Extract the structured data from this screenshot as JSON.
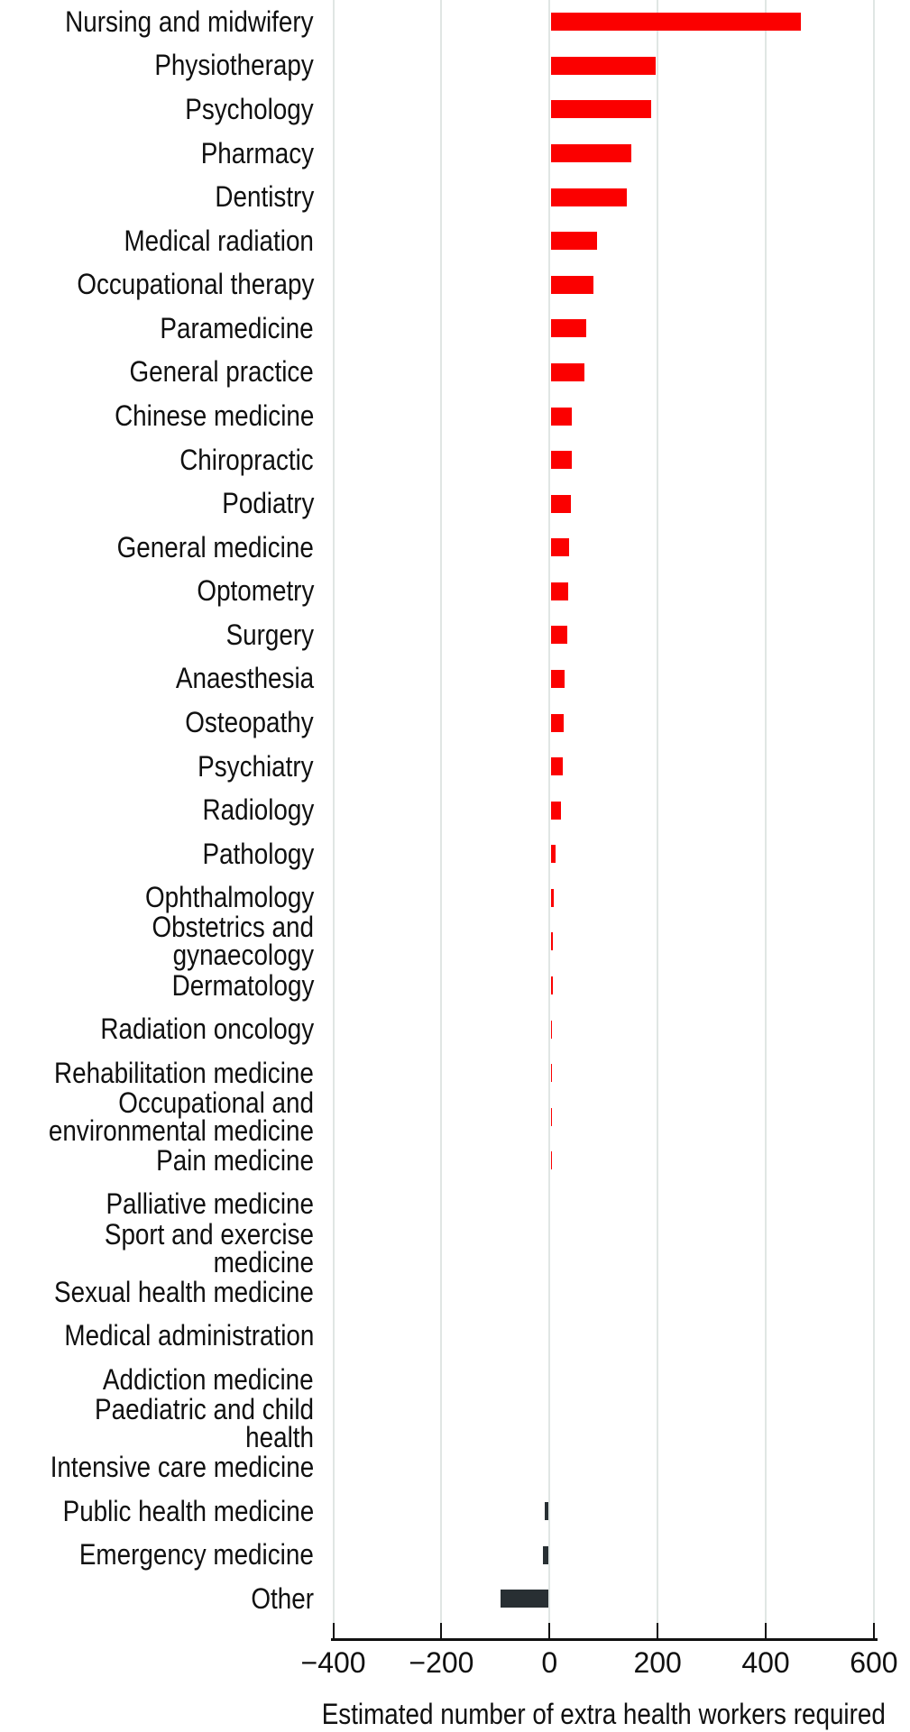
{
  "page": {
    "background": "#ffffff"
  },
  "chart_data": {
    "type": "bar",
    "orientation": "horizontal",
    "title": "",
    "xlabel": "Estimated number of extra health workers required",
    "ylabel": "",
    "xlim": [
      -400,
      600
    ],
    "xticks": [
      -400,
      -200,
      0,
      200,
      400,
      600
    ],
    "xtick_labels": [
      "−400",
      "−200",
      "0",
      "200",
      "400",
      "600"
    ],
    "grid": "vertical",
    "legend": "none",
    "colors": {
      "positive_bar": "#fb0000",
      "negative_bar": "#282f33",
      "gridline": "#e0e6e4",
      "axis": "#111111",
      "text": "#101010"
    },
    "categories": [
      "Nursing and midwifery",
      "Physiotherapy",
      "Psychology",
      "Pharmacy",
      "Dentistry",
      "Medical radiation",
      "Occupational therapy",
      "Paramedicine",
      "General practice",
      "Chinese medicine",
      "Chiropractic",
      "Podiatry",
      "General medicine",
      "Optometry",
      "Surgery",
      "Anaesthesia",
      "Osteopathy",
      "Psychiatry",
      "Radiology",
      "Pathology",
      "Ophthalmology",
      "Obstetrics and gynaecology",
      "Dermatology",
      "Radiation oncology",
      "Rehabilitation medicine",
      "Occupational and\nenvironmental medicine",
      "Pain medicine",
      "Palliative medicine",
      "Sport and exercise medicine",
      "Sexual health medicine",
      "Medical administration",
      "Addiction medicine",
      "Paediatric and child health",
      "Intensive care medicine",
      "Public health medicine",
      "Emergency medicine",
      "Other"
    ],
    "values": [
      465,
      196,
      188,
      152,
      143,
      88,
      81,
      68,
      64,
      42,
      41,
      39,
      36,
      35,
      33,
      28,
      26,
      25,
      22,
      12,
      8,
      7,
      6,
      4,
      4,
      2,
      2,
      0,
      0,
      0,
      0,
      0,
      0,
      0,
      -9,
      -12,
      -90
    ]
  }
}
